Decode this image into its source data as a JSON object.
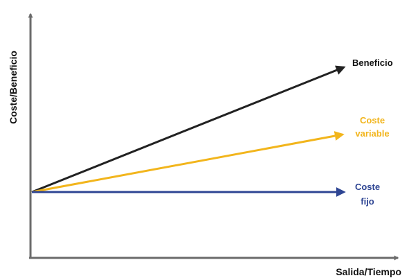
{
  "diagram": {
    "y_axis_label": "Coste/Beneficio",
    "x_axis_label": "Salida/Tiempo",
    "axis_color": "#6b6b6b",
    "lines": [
      {
        "id": "beneficio",
        "label_lines": [
          "Beneficio"
        ],
        "color": "#222222"
      },
      {
        "id": "coste-variable",
        "label_lines": [
          "Coste",
          "variable"
        ],
        "color": "#f2b51c"
      },
      {
        "id": "coste-fijo",
        "label_lines": [
          "Coste",
          "fijo"
        ],
        "color": "#2e4593"
      }
    ]
  }
}
